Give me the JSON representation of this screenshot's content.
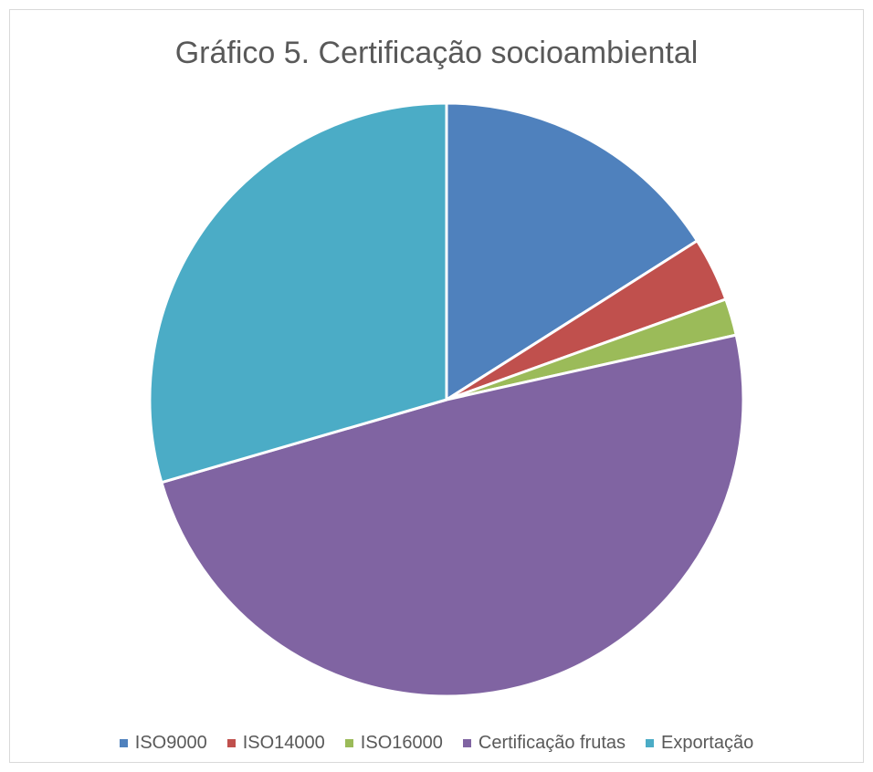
{
  "chart_data": {
    "type": "pie",
    "title": "Gráfico 5. Certificação socioambiental",
    "legend_position": "bottom",
    "slices": [
      {
        "label": "ISO9000",
        "value": 16,
        "color": "#4f81bd"
      },
      {
        "label": "ISO14000",
        "value": 3.5,
        "color": "#c0504d"
      },
      {
        "label": "ISO16000",
        "value": 2,
        "color": "#9bbb59"
      },
      {
        "label": "Certificação frutas",
        "value": 49,
        "color": "#8064a2"
      },
      {
        "label": "Exportação",
        "value": 29.5,
        "color": "#4bacc6"
      }
    ]
  }
}
